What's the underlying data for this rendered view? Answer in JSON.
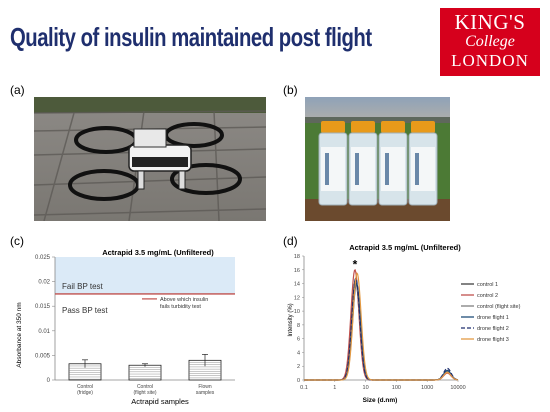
{
  "title": "Quality of insulin maintained post flight",
  "logo": {
    "line1": "KING'S",
    "line2": "College",
    "line3": "LONDON"
  },
  "panels": {
    "a": "(a)",
    "b": "(b)",
    "c": "(c)",
    "d": "(d)"
  },
  "colors": {
    "title": "#1f2f6e",
    "logo_bg": "#d6001c",
    "fail_region": "#dbeaf7",
    "threshold": "#c0504d"
  },
  "chart_data": [
    {
      "type": "bar",
      "title": "Actrapid 3.5 mg/mL (Unfiltered)",
      "xlabel": "Actrapid samples",
      "ylabel": "Absorbance at 350 nm",
      "ylim": [
        0,
        0.025
      ],
      "yticks": [
        "0",
        "0.005",
        "0.01",
        "0.015",
        "0.02",
        "0.025"
      ],
      "categories": [
        "Control (fridge)",
        "Control (flight site)",
        "Flown samples"
      ],
      "values": [
        0.0033,
        0.003,
        0.004
      ],
      "errors": [
        0.0008,
        0.0003,
        0.0012
      ],
      "threshold": 0.0175,
      "threshold_label": "Above which insulin fails turbidity test",
      "region_labels": {
        "fail": "Fail BP test",
        "pass": "Pass BP test"
      },
      "grid": false
    },
    {
      "type": "line",
      "title": "Actrapid 3.5 mg/mL (Unfiltered)",
      "xlabel": "Size (d.nm)",
      "ylabel": "Intensity (%)",
      "xscale": "log",
      "xlim": [
        0.1,
        10000
      ],
      "ylim": [
        0,
        18
      ],
      "xticks": [
        "0.1",
        "1",
        "10",
        "100",
        "1000",
        "10000"
      ],
      "yticks": [
        "0",
        "2",
        "4",
        "6",
        "8",
        "10",
        "12",
        "14",
        "16",
        "18"
      ],
      "annotation": "*",
      "legend_position": "right",
      "series": [
        {
          "name": "control 1",
          "color": "#404040",
          "dash": "",
          "peak": 14.5,
          "center": 4.7,
          "peak2": 1.2
        },
        {
          "name": "control 2",
          "color": "#c0504d",
          "dash": "",
          "peak": 16.0,
          "center": 4.5,
          "peak2": 1.0
        },
        {
          "name": "control (flight site)",
          "color": "#7f7f7f",
          "dash": "",
          "peak": 14.2,
          "center": 4.9,
          "peak2": 1.3
        },
        {
          "name": "drone flight 1",
          "color": "#1f4e79",
          "dash": "",
          "peak": 14.0,
          "center": 5.1,
          "peak2": 1.4
        },
        {
          "name": "drone flight 2",
          "color": "#1f2f6e",
          "dash": "4,2",
          "peak": 14.8,
          "center": 4.8,
          "peak2": 1.7
        },
        {
          "name": "drone flight 3",
          "color": "#e39a44",
          "dash": "",
          "peak": 15.5,
          "center": 5.3,
          "peak2": 1.1
        }
      ]
    }
  ]
}
